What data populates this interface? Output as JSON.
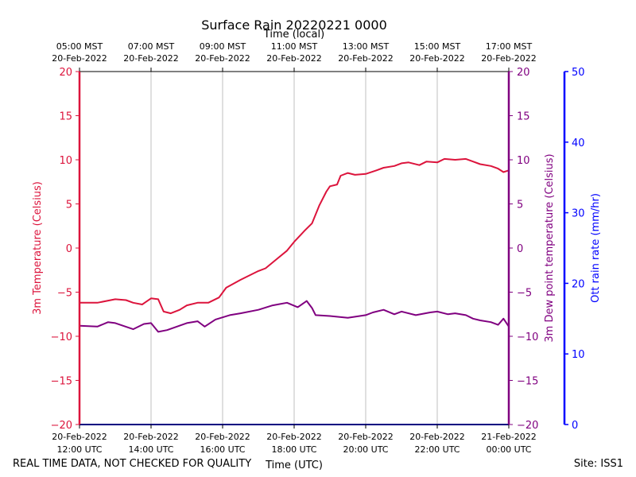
{
  "chart_data": {
    "type": "line",
    "title": "Surface Rain 20220221 0000",
    "top_xlabel": "Time (local)",
    "xlabel": "Time (UTC)",
    "x_range_hours": [
      12,
      24
    ],
    "bottom_ticks": [
      {
        "hour": 12,
        "line1": "20-Feb-2022",
        "line2": "12:00 UTC"
      },
      {
        "hour": 14,
        "line1": "20-Feb-2022",
        "line2": "14:00 UTC"
      },
      {
        "hour": 16,
        "line1": "20-Feb-2022",
        "line2": "16:00 UTC"
      },
      {
        "hour": 18,
        "line1": "20-Feb-2022",
        "line2": "18:00 UTC"
      },
      {
        "hour": 20,
        "line1": "20-Feb-2022",
        "line2": "20:00 UTC"
      },
      {
        "hour": 22,
        "line1": "20-Feb-2022",
        "line2": "22:00 UTC"
      },
      {
        "hour": 24,
        "line1": "21-Feb-2022",
        "line2": "00:00 UTC"
      }
    ],
    "top_ticks": [
      {
        "hour": 12,
        "line1": "05:00 MST",
        "line2": "20-Feb-2022"
      },
      {
        "hour": 14,
        "line1": "07:00 MST",
        "line2": "20-Feb-2022"
      },
      {
        "hour": 16,
        "line1": "09:00 MST",
        "line2": "20-Feb-2022"
      },
      {
        "hour": 18,
        "line1": "11:00 MST",
        "line2": "20-Feb-2022"
      },
      {
        "hour": 20,
        "line1": "13:00 MST",
        "line2": "20-Feb-2022"
      },
      {
        "hour": 22,
        "line1": "15:00 MST",
        "line2": "20-Feb-2022"
      },
      {
        "hour": 24,
        "line1": "17:00 MST",
        "line2": "20-Feb-2022"
      }
    ],
    "left_axis": {
      "label": "3m Temperature (Celsius)",
      "ylim": [
        -20,
        20
      ],
      "ticks": [
        -20,
        -15,
        -10,
        -5,
        0,
        5,
        10,
        15,
        20
      ],
      "tick_labels": [
        "−20",
        "−15",
        "−10",
        "−5",
        "0",
        "5",
        "10",
        "15",
        "20"
      ],
      "color": "#dc143c"
    },
    "right_axis": {
      "label": "3m Dew point temperature (Celsius)",
      "ylim": [
        -20,
        20
      ],
      "ticks": [
        -20,
        -15,
        -10,
        -5,
        0,
        5,
        10,
        15,
        20
      ],
      "tick_labels": [
        "−20",
        "−15",
        "−10",
        "−5",
        "0",
        "5",
        "10",
        "15",
        "20"
      ],
      "color": "#800080"
    },
    "rain_axis": {
      "label": "Ott rain rate (mm/hr)",
      "ylim": [
        0,
        50
      ],
      "ticks": [
        0,
        10,
        20,
        30,
        40,
        50
      ],
      "tick_labels": [
        "0",
        "10",
        "20",
        "30",
        "40",
        "50"
      ],
      "color": "#0000ff"
    },
    "series": [
      {
        "name": "3m Temperature",
        "color": "#dc143c",
        "axis": "left",
        "points": [
          [
            12.0,
            -6.2
          ],
          [
            12.5,
            -6.2
          ],
          [
            13.0,
            -5.8
          ],
          [
            13.3,
            -5.9
          ],
          [
            13.5,
            -6.2
          ],
          [
            13.75,
            -6.4
          ],
          [
            14.0,
            -5.7
          ],
          [
            14.2,
            -5.8
          ],
          [
            14.35,
            -7.2
          ],
          [
            14.55,
            -7.4
          ],
          [
            14.8,
            -7.0
          ],
          [
            15.0,
            -6.5
          ],
          [
            15.3,
            -6.2
          ],
          [
            15.6,
            -6.2
          ],
          [
            15.9,
            -5.6
          ],
          [
            16.1,
            -4.5
          ],
          [
            16.5,
            -3.6
          ],
          [
            17.0,
            -2.6
          ],
          [
            17.2,
            -2.3
          ],
          [
            17.5,
            -1.3
          ],
          [
            17.8,
            -0.3
          ],
          [
            18.0,
            0.7
          ],
          [
            18.3,
            2.0
          ],
          [
            18.5,
            2.8
          ],
          [
            18.7,
            4.8
          ],
          [
            18.9,
            6.4
          ],
          [
            19.0,
            7.0
          ],
          [
            19.2,
            7.2
          ],
          [
            19.3,
            8.2
          ],
          [
            19.5,
            8.5
          ],
          [
            19.7,
            8.3
          ],
          [
            20.0,
            8.4
          ],
          [
            20.3,
            8.8
          ],
          [
            20.5,
            9.1
          ],
          [
            20.8,
            9.3
          ],
          [
            21.0,
            9.6
          ],
          [
            21.2,
            9.7
          ],
          [
            21.5,
            9.4
          ],
          [
            21.7,
            9.8
          ],
          [
            22.0,
            9.7
          ],
          [
            22.2,
            10.1
          ],
          [
            22.5,
            10.0
          ],
          [
            22.8,
            10.1
          ],
          [
            23.0,
            9.8
          ],
          [
            23.2,
            9.5
          ],
          [
            23.5,
            9.3
          ],
          [
            23.7,
            9.0
          ],
          [
            23.85,
            8.6
          ],
          [
            24.0,
            8.8
          ]
        ]
      },
      {
        "name": "3m Dew point temperature",
        "color": "#800080",
        "axis": "right",
        "points": [
          [
            12.0,
            -8.8
          ],
          [
            12.5,
            -8.9
          ],
          [
            12.8,
            -8.4
          ],
          [
            13.0,
            -8.5
          ],
          [
            13.5,
            -9.2
          ],
          [
            13.8,
            -8.6
          ],
          [
            14.0,
            -8.5
          ],
          [
            14.2,
            -9.5
          ],
          [
            14.45,
            -9.3
          ],
          [
            15.0,
            -8.5
          ],
          [
            15.3,
            -8.3
          ],
          [
            15.5,
            -8.9
          ],
          [
            15.8,
            -8.1
          ],
          [
            16.2,
            -7.6
          ],
          [
            16.5,
            -7.4
          ],
          [
            17.0,
            -7.0
          ],
          [
            17.4,
            -6.5
          ],
          [
            17.8,
            -6.2
          ],
          [
            18.1,
            -6.7
          ],
          [
            18.35,
            -6.0
          ],
          [
            18.5,
            -6.8
          ],
          [
            18.6,
            -7.6
          ],
          [
            19.0,
            -7.7
          ],
          [
            19.5,
            -7.9
          ],
          [
            20.0,
            -7.6
          ],
          [
            20.2,
            -7.3
          ],
          [
            20.5,
            -7.0
          ],
          [
            20.8,
            -7.5
          ],
          [
            21.0,
            -7.2
          ],
          [
            21.4,
            -7.6
          ],
          [
            21.8,
            -7.3
          ],
          [
            22.0,
            -7.2
          ],
          [
            22.3,
            -7.5
          ],
          [
            22.5,
            -7.4
          ],
          [
            22.8,
            -7.6
          ],
          [
            23.0,
            -8.0
          ],
          [
            23.2,
            -8.2
          ],
          [
            23.5,
            -8.4
          ],
          [
            23.7,
            -8.7
          ],
          [
            23.85,
            -8.0
          ],
          [
            24.0,
            -8.9
          ]
        ]
      },
      {
        "name": "Ott rain rate",
        "color": "#0000ff",
        "axis": "rain",
        "points": [
          [
            12.0,
            0.0
          ],
          [
            24.0,
            0.0
          ]
        ]
      }
    ],
    "grid": "vertical"
  },
  "footer": {
    "disclaimer": "REAL TIME DATA, NOT CHECKED FOR QUALITY",
    "site": "Site: ISS1"
  }
}
